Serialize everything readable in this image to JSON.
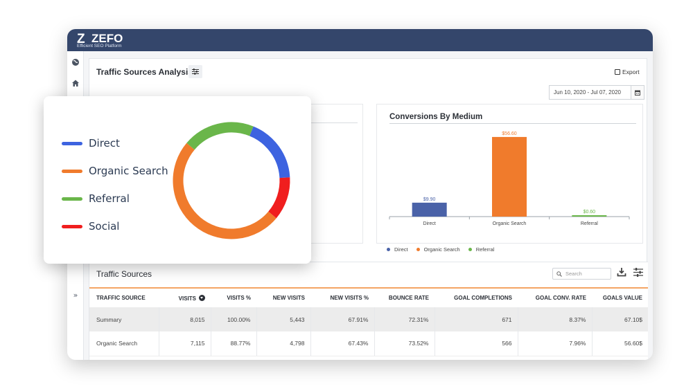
{
  "app": {
    "logo_mark": "Z",
    "logo_name": "ZEFO",
    "tagline": "Efficient SEO Platform"
  },
  "sidebar": {
    "icons": [
      "globe-icon",
      "home-icon"
    ],
    "expand_icon": "double-chevron-right-icon"
  },
  "header": {
    "title": "Traffic Sources Analysis",
    "export_label": "Export",
    "date_range": "Jun 10, 2020 - Jul 07, 2020"
  },
  "conversions": {
    "title": "Conversions By Medium",
    "legend": [
      "Direct",
      "Organic Search",
      "Referral"
    ]
  },
  "traffic_sources": {
    "title": "Traffic Sources",
    "search_placeholder": "Search",
    "columns": [
      "TRAFFIC SOURCE",
      "VISITS",
      "VISITS %",
      "NEW VISITS",
      "NEW VISITS %",
      "BOUNCE RATE",
      "GOAL COMPLETIONS",
      "GOAL CONV. RATE",
      "GOALS VALUE"
    ],
    "rows": [
      [
        "Summary",
        "8,015",
        "100.00%",
        "5,443",
        "67.91%",
        "72.31%",
        "671",
        "8.37%",
        "67.10$"
      ],
      [
        "Organic Search",
        "7,115",
        "88.77%",
        "4,798",
        "67.43%",
        "73.52%",
        "566",
        "7.96%",
        "56.60$"
      ]
    ]
  },
  "overlay": {
    "legend": [
      "Direct",
      "Organic Search",
      "Referral",
      "Social"
    ]
  },
  "colors": {
    "direct": "#3d63e0",
    "organic": "#f07b2c",
    "referral": "#6ab64a",
    "social": "#f01e1e",
    "bar_direct": "#4a62a8",
    "bar_organic": "#f07b2c",
    "bar_referral": "#6ab64a",
    "topbar": "#34466b"
  },
  "chart_data": [
    {
      "type": "bar",
      "title": "Conversions By Medium",
      "categories": [
        "Direct",
        "Organic Search",
        "Referral"
      ],
      "values": [
        9.9,
        56.6,
        0.6
      ],
      "data_labels": [
        "$9.90",
        "$56.60",
        "$0.60"
      ],
      "ylim": [
        0,
        60
      ],
      "grid": false,
      "legend": "bottom"
    },
    {
      "type": "pie",
      "donut": true,
      "categories": [
        "Direct",
        "Organic Search",
        "Referral",
        "Social"
      ],
      "values": [
        18,
        50,
        20,
        12
      ],
      "legend": "left"
    }
  ]
}
